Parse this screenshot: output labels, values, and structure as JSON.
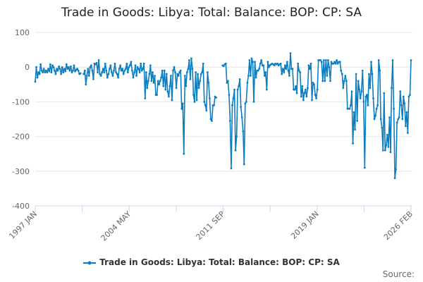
{
  "chart_data": {
    "type": "line",
    "title": "Trade in Goods: Libya: Total: Balance: BOP: CP: SA",
    "xlabel": "",
    "ylabel": "",
    "start": "1997-01",
    "frequency": "monthly",
    "ylim": [
      -400,
      100
    ],
    "yticks": [
      100,
      0,
      -100,
      -200,
      -300,
      -400
    ],
    "xtick_labels": [
      "1997 JAN",
      "2004 MAY",
      "2011 SEP",
      "2019 JAN",
      "2026 FEB"
    ],
    "grid": true,
    "legend_position": "bottom",
    "series": [
      {
        "name": "Trade in Goods: Libya: Total: Balance: BOP: CP: SA",
        "color": "#0b7dc1",
        "values": [
          -42,
          0,
          -30,
          -15,
          -20,
          8,
          -10,
          -15,
          -5,
          -15,
          -10,
          -15,
          -5,
          -12,
          8,
          -15,
          5,
          0,
          -10,
          -20,
          -5,
          -10,
          2,
          -5,
          -20,
          0,
          -15,
          -5,
          -12,
          8,
          -5,
          0,
          -10,
          2,
          -15,
          -10,
          5,
          -12,
          -8,
          -5,
          -10,
          -20,
          -18,
          null,
          null,
          -20,
          -10,
          -50,
          -25,
          -5,
          -25,
          0,
          5,
          -10,
          -35,
          10,
          8,
          12,
          -15,
          20,
          -20,
          -25,
          -15,
          -5,
          -15,
          10,
          -10,
          -30,
          -20,
          -5,
          5,
          -15,
          -25,
          -10,
          10,
          -15,
          -20,
          -30,
          -5,
          5,
          -10,
          -5,
          -20,
          -10,
          -5,
          10,
          -15,
          0,
          5,
          15,
          -10,
          -30,
          -15,
          5,
          -25,
          0,
          -5,
          -15,
          10,
          -10,
          -5,
          10,
          -90,
          -15,
          -60,
          -40,
          -20,
          5,
          -40,
          -15,
          -45,
          -25,
          -80,
          -80,
          -40,
          -50,
          -40,
          -30,
          -10,
          -55,
          -10,
          -65,
          -20,
          -70,
          -85,
          -55,
          -25,
          -95,
          -10,
          0,
          -15,
          -60,
          -20,
          -25,
          -15,
          -10,
          -120,
          -105,
          -250,
          -25,
          -55,
          -15,
          -5,
          20,
          -35,
          25,
          -5,
          -80,
          -100,
          -15,
          -95,
          -20,
          -60,
          -40,
          -20,
          -15,
          10,
          -100,
          -110,
          -125,
          -15,
          -45,
          -90,
          -150,
          -155,
          -110,
          -110,
          -85,
          -88,
          null,
          null,
          null,
          null,
          null,
          5,
          3,
          8,
          10,
          -45,
          -40,
          -80,
          -155,
          -292,
          -110,
          -90,
          -65,
          -240,
          -200,
          -65,
          -55,
          -35,
          -115,
          -145,
          -185,
          -280,
          -105,
          -100,
          -45,
          -25,
          20,
          -25,
          25,
          15,
          -100,
          15,
          -30,
          -10,
          -10,
          -5,
          10,
          20,
          5,
          5,
          -25,
          -15,
          -65,
          15,
          0,
          5,
          8,
          10,
          8,
          5,
          10,
          8,
          10,
          5,
          8,
          10,
          -20,
          -5,
          -15,
          5,
          -5,
          15,
          -10,
          -25,
          40,
          -5,
          -5,
          -65,
          -65,
          -55,
          -75,
          10,
          -10,
          -15,
          -85,
          -55,
          -95,
          -75,
          -65,
          -85,
          -60,
          5,
          -5,
          10,
          -95,
          -45,
          -50,
          -80,
          -90,
          -65,
          20,
          20,
          20,
          15,
          -40,
          20,
          -40,
          20,
          -25,
          20,
          0,
          -40,
          15,
          10,
          10,
          15,
          10,
          20,
          10,
          15,
          15,
          -10,
          -20,
          -60,
          -40,
          -25,
          -40,
          -120,
          -120,
          -120,
          -110,
          -70,
          -220,
          -130,
          -180,
          -20,
          -155,
          -40,
          -65,
          -90,
          -70,
          -10,
          -100,
          -290,
          -85,
          -80,
          -110,
          -20,
          -60,
          15,
          -20,
          -90,
          -150,
          -140,
          -120,
          -110,
          20,
          -10,
          -150,
          -175,
          -240,
          -75,
          -240,
          -225,
          -195,
          -230,
          -145,
          -245,
          -60,
          20,
          -120,
          -320,
          -295,
          -160,
          -150,
          -145,
          -70,
          -110,
          -150,
          -85,
          -105,
          -170,
          -130,
          -190,
          -85,
          -80,
          20
        ]
      }
    ]
  },
  "source_label": "Source:"
}
